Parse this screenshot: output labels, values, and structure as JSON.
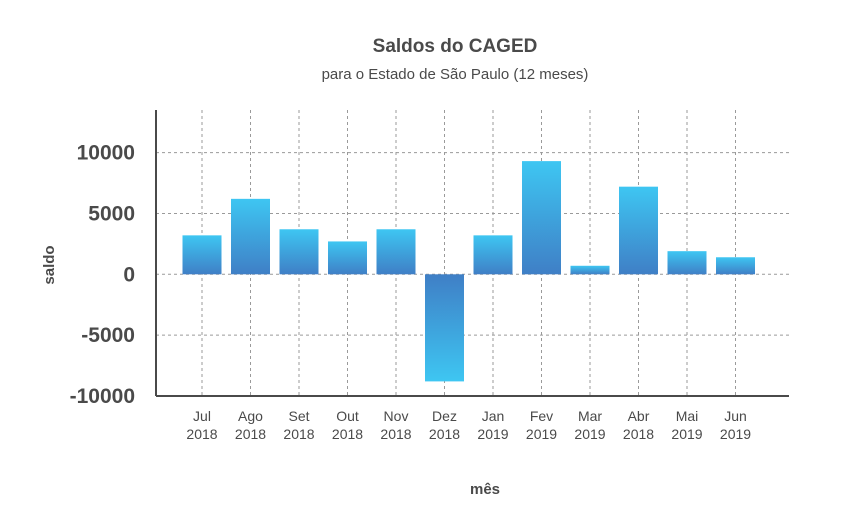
{
  "chart_data": {
    "type": "bar",
    "title": "Saldos do CAGED",
    "subtitle": "para o Estado de São Paulo (12 meses)",
    "xlabel": "mês",
    "ylabel": "saldo",
    "categories": [
      [
        "Jul",
        "2018"
      ],
      [
        "Ago",
        "2018"
      ],
      [
        "Set",
        "2018"
      ],
      [
        "Out",
        "2018"
      ],
      [
        "Nov",
        "2018"
      ],
      [
        "Dez",
        "2018"
      ],
      [
        "Jan",
        "2019"
      ],
      [
        "Fev",
        "2019"
      ],
      [
        "Mar",
        "2019"
      ],
      [
        "Abr",
        "2018"
      ],
      [
        "Mai",
        "2019"
      ],
      [
        "Jun",
        "2019"
      ]
    ],
    "values": [
      3200,
      6200,
      3700,
      2700,
      3700,
      -8800,
      3200,
      9300,
      700,
      7200,
      1900,
      1400
    ],
    "ylim": [
      -10000,
      13500
    ],
    "yticks": [
      10000,
      5000,
      0,
      -5000,
      -10000
    ],
    "grid": true,
    "colors": {
      "bar_light": "#3ec6f2",
      "bar_dark": "#3f7fc6",
      "grid": "#9a9a9a",
      "text": "#4a4a4a"
    }
  }
}
